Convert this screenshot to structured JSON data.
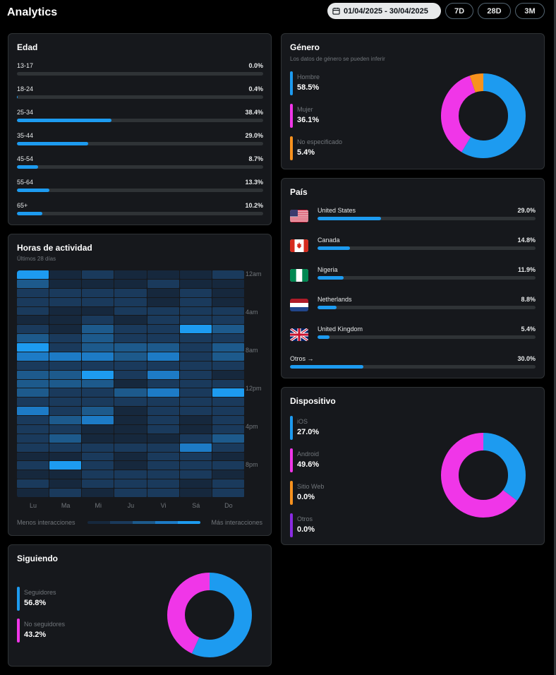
{
  "header": {
    "title": "Analytics",
    "date_range": "01/04/2025 - 30/04/2025",
    "ranges": [
      "7D",
      "28D",
      "3M"
    ]
  },
  "age": {
    "title": "Edad",
    "rows": [
      {
        "label": "13-17",
        "value": "0.0%",
        "pct": 0.0
      },
      {
        "label": "18-24",
        "value": "0.4%",
        "pct": 0.4
      },
      {
        "label": "25-34",
        "value": "38.4%",
        "pct": 38.4
      },
      {
        "label": "35-44",
        "value": "29.0%",
        "pct": 29.0
      },
      {
        "label": "45-54",
        "value": "8.7%",
        "pct": 8.7
      },
      {
        "label": "55-64",
        "value": "13.3%",
        "pct": 13.3
      },
      {
        "label": "65+",
        "value": "10.2%",
        "pct": 10.2
      }
    ]
  },
  "gender": {
    "title": "Género",
    "subtitle": "Los datos de género se pueden inferir",
    "items": [
      {
        "label": "Hombre",
        "value": "58.5%",
        "pct": 58.5,
        "color": "#1d9bf0"
      },
      {
        "label": "Mujer",
        "value": "36.1%",
        "pct": 36.1,
        "color": "#f036e8"
      },
      {
        "label": "No especificado",
        "value": "5.4%",
        "pct": 5.4,
        "color": "#f7921e"
      }
    ]
  },
  "country": {
    "title": "País",
    "items": [
      {
        "label": "United States",
        "value": "29.0%",
        "pct": 29.0,
        "flag": "us-flag-icon"
      },
      {
        "label": "Canada",
        "value": "14.8%",
        "pct": 14.8,
        "flag": "ca-flag-icon"
      },
      {
        "label": "Nigeria",
        "value": "11.9%",
        "pct": 11.9,
        "flag": "ng-flag-icon"
      },
      {
        "label": "Netherlands",
        "value": "8.8%",
        "pct": 8.8,
        "flag": "nl-flag-icon"
      },
      {
        "label": "United Kingdom",
        "value": "5.4%",
        "pct": 5.4,
        "flag": "gb-flag-icon"
      }
    ],
    "others": {
      "label": "Otros →",
      "value": "30.0%",
      "pct": 30.0
    }
  },
  "activity": {
    "title": "Horas de actividad",
    "subtitle": "Últimos 28 días",
    "days": [
      "Lu",
      "Ma",
      "Mi",
      "Ju",
      "Vi",
      "Sá",
      "Do"
    ],
    "time_labels": [
      "12am",
      "4am",
      "8am",
      "12pm",
      "4pm",
      "8pm"
    ],
    "legend_low": "Menos interacciones",
    "legend_high": "Más interacciones",
    "scale_colors": [
      "#16283d",
      "#1a3a5c",
      "#1d5a8c",
      "#1d7bc6",
      "#1d9bf0"
    ],
    "levels": [
      [
        4,
        0,
        1,
        0,
        0,
        0,
        1
      ],
      [
        2,
        0,
        0,
        0,
        1,
        0,
        0
      ],
      [
        1,
        1,
        1,
        1,
        0,
        1,
        0
      ],
      [
        1,
        1,
        1,
        1,
        0,
        1,
        0
      ],
      [
        1,
        0,
        0,
        1,
        1,
        1,
        1
      ],
      [
        0,
        0,
        1,
        0,
        1,
        1,
        1
      ],
      [
        1,
        0,
        2,
        1,
        1,
        4,
        2
      ],
      [
        2,
        1,
        2,
        1,
        1,
        1,
        1
      ],
      [
        4,
        1,
        2,
        2,
        2,
        1,
        2
      ],
      [
        3,
        3,
        3,
        2,
        3,
        1,
        2
      ],
      [
        1,
        1,
        1,
        1,
        1,
        1,
        1
      ],
      [
        2,
        2,
        4,
        1,
        3,
        1,
        0
      ],
      [
        2,
        2,
        2,
        0,
        1,
        1,
        1
      ],
      [
        2,
        1,
        1,
        2,
        3,
        1,
        4
      ],
      [
        1,
        1,
        1,
        1,
        1,
        1,
        1
      ],
      [
        3,
        1,
        2,
        0,
        1,
        1,
        1
      ],
      [
        1,
        2,
        3,
        0,
        1,
        0,
        1
      ],
      [
        1,
        1,
        0,
        0,
        1,
        0,
        1
      ],
      [
        1,
        2,
        0,
        0,
        0,
        1,
        2
      ],
      [
        1,
        1,
        1,
        1,
        1,
        3,
        1
      ],
      [
        0,
        0,
        1,
        0,
        1,
        1,
        0
      ],
      [
        1,
        4,
        1,
        0,
        1,
        1,
        1
      ],
      [
        0,
        0,
        1,
        1,
        1,
        1,
        0
      ],
      [
        1,
        0,
        1,
        1,
        1,
        0,
        1
      ],
      [
        0,
        1,
        0,
        1,
        1,
        0,
        1
      ]
    ]
  },
  "device": {
    "title": "Dispositivo",
    "items": [
      {
        "label": "iOS",
        "value": "27.0%",
        "pct": 27.0,
        "color": "#1d9bf0"
      },
      {
        "label": "Android",
        "value": "49.6%",
        "pct": 49.6,
        "color": "#f036e8"
      },
      {
        "label": "Sitio Web",
        "value": "0.0%",
        "pct": 0.0,
        "color": "#f7921e"
      },
      {
        "label": "Otros",
        "value": "0.0%",
        "pct": 0.0,
        "color": "#8a2be2"
      }
    ]
  },
  "following": {
    "title": "Siguiendo",
    "items": [
      {
        "label": "Seguidores",
        "value": "56.8%",
        "pct": 56.8,
        "color": "#1d9bf0"
      },
      {
        "label": "No seguidores",
        "value": "43.2%",
        "pct": 43.2,
        "color": "#f036e8"
      }
    ]
  }
}
